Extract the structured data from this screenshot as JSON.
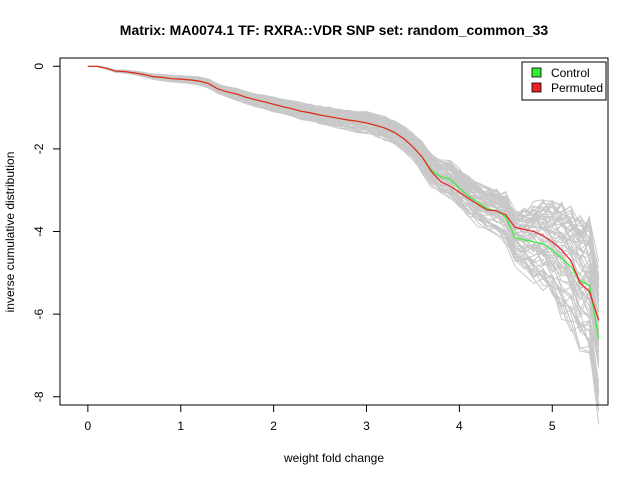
{
  "chart_data": {
    "type": "line",
    "title": "Matrix: MA0074.1 TF: RXRA::VDR SNP set: random_common_33",
    "xlabel": "weight fold change",
    "ylabel": "inverse cumulative distribution",
    "xlim": [
      -0.3,
      5.6
    ],
    "ylim": [
      -8.2,
      0.2
    ],
    "xticks": [
      0,
      1,
      2,
      3,
      4,
      5
    ],
    "yticks": [
      0,
      -2,
      -4,
      -6,
      -8
    ],
    "legend_position": "top-right",
    "grid": false,
    "colors": {
      "control": "#33ee33",
      "permuted": "#ee2222",
      "background_runs": "#c8c8c8"
    },
    "series": [
      {
        "name": "Control",
        "x": [
          0,
          0.1,
          0.2,
          0.3,
          0.4,
          0.5,
          0.6,
          0.7,
          0.8,
          0.9,
          1.0,
          1.1,
          1.2,
          1.3,
          1.4,
          1.5,
          1.6,
          1.7,
          1.8,
          1.9,
          2.0,
          2.1,
          2.2,
          2.3,
          2.4,
          2.5,
          2.6,
          2.7,
          2.8,
          2.9,
          3.0,
          3.1,
          3.2,
          3.3,
          3.4,
          3.5,
          3.6,
          3.7,
          3.8,
          3.9,
          4.0,
          4.1,
          4.2,
          4.3,
          4.4,
          4.5,
          4.6,
          4.7,
          4.8,
          4.9,
          5.0,
          5.1,
          5.2,
          5.3,
          5.4,
          5.5
        ],
        "values": [
          0,
          0,
          -0.05,
          -0.12,
          -0.13,
          -0.16,
          -0.2,
          -0.25,
          -0.27,
          -0.3,
          -0.31,
          -0.33,
          -0.36,
          -0.42,
          -0.55,
          -0.62,
          -0.67,
          -0.75,
          -0.81,
          -0.86,
          -0.92,
          -0.98,
          -1.03,
          -1.09,
          -1.13,
          -1.18,
          -1.22,
          -1.26,
          -1.3,
          -1.33,
          -1.37,
          -1.43,
          -1.5,
          -1.6,
          -1.75,
          -1.95,
          -2.2,
          -2.52,
          -2.68,
          -2.73,
          -2.95,
          -3.15,
          -3.3,
          -3.45,
          -3.5,
          -3.65,
          -4.15,
          -4.2,
          -4.25,
          -4.3,
          -4.45,
          -4.65,
          -4.85,
          -5.2,
          -5.3,
          -6.6
        ]
      },
      {
        "name": "Permuted",
        "x": [
          0,
          0.1,
          0.2,
          0.3,
          0.4,
          0.5,
          0.6,
          0.7,
          0.8,
          0.9,
          1.0,
          1.1,
          1.2,
          1.3,
          1.4,
          1.5,
          1.6,
          1.7,
          1.8,
          1.9,
          2.0,
          2.1,
          2.2,
          2.3,
          2.4,
          2.5,
          2.6,
          2.7,
          2.8,
          2.9,
          3.0,
          3.1,
          3.2,
          3.3,
          3.4,
          3.5,
          3.6,
          3.7,
          3.8,
          3.9,
          4.0,
          4.1,
          4.2,
          4.3,
          4.4,
          4.5,
          4.6,
          4.7,
          4.8,
          4.9,
          5.0,
          5.1,
          5.2,
          5.3,
          5.4,
          5.5
        ],
        "values": [
          0,
          0,
          -0.05,
          -0.12,
          -0.13,
          -0.16,
          -0.2,
          -0.25,
          -0.27,
          -0.3,
          -0.31,
          -0.33,
          -0.36,
          -0.42,
          -0.55,
          -0.62,
          -0.67,
          -0.75,
          -0.81,
          -0.86,
          -0.92,
          -0.98,
          -1.03,
          -1.09,
          -1.13,
          -1.18,
          -1.22,
          -1.26,
          -1.3,
          -1.33,
          -1.37,
          -1.43,
          -1.5,
          -1.6,
          -1.75,
          -1.95,
          -2.2,
          -2.55,
          -2.8,
          -2.9,
          -3.05,
          -3.2,
          -3.35,
          -3.48,
          -3.5,
          -3.6,
          -3.9,
          -3.95,
          -4.0,
          -4.1,
          -4.25,
          -4.45,
          -4.7,
          -5.25,
          -5.45,
          -6.15
        ]
      }
    ]
  }
}
